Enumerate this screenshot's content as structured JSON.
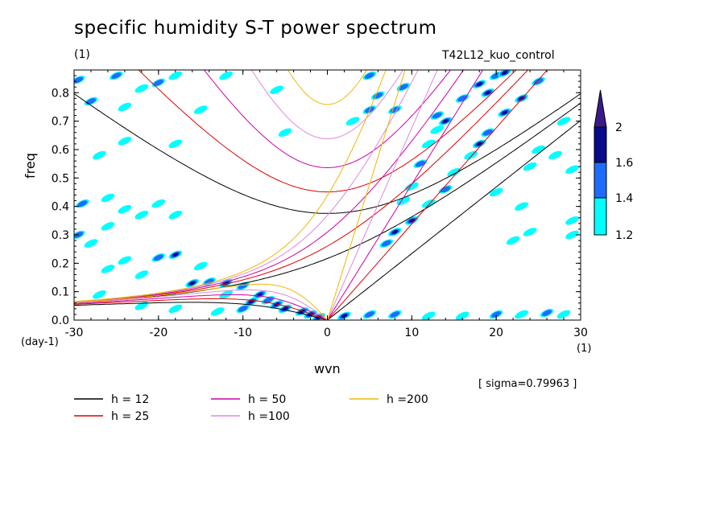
{
  "header": {
    "title": "specific humidity S-T power spectrum",
    "unit_left": "(1)",
    "run_name": "T42L12_kuo_control",
    "sigma": "[ sigma=0.79963 ]"
  },
  "chart_data": {
    "type": "contour",
    "xlabel": "wvn",
    "ylabel": "freq",
    "x_unit": "(1)",
    "y_unit": "(day-1)",
    "xlim": [
      -30,
      30
    ],
    "ylim": [
      0.0,
      0.88
    ],
    "xticks": [
      -30,
      -20,
      -10,
      0,
      10,
      20,
      30
    ],
    "xtick_labels": [
      "-30",
      "-20",
      "-10",
      "0",
      "10",
      "20",
      "30"
    ],
    "yticks": [
      0.0,
      0.1,
      0.2,
      0.3,
      0.4,
      0.5,
      0.6,
      0.7,
      0.8
    ],
    "ytick_labels": [
      "0.0",
      "0.1",
      "0.2",
      "0.3",
      "0.4",
      "0.5",
      "0.6",
      "0.7",
      "0.8"
    ],
    "colorbar": {
      "levels": [
        1.2,
        1.4,
        1.6,
        2
      ],
      "labels": [
        "1.2",
        "1.4",
        "1.6",
        "2"
      ],
      "colors": [
        "#00ffff",
        "#1e6cff",
        "#0a0a8c",
        "#3a1a8a"
      ]
    },
    "dispersion_curves": [
      {
        "name": "h = 12",
        "h": 12,
        "color": "#000000"
      },
      {
        "name": "h = 25",
        "h": 25,
        "color": "#dd0000"
      },
      {
        "name": "h = 50",
        "h": 50,
        "color": "#cc00aa"
      },
      {
        "name": "h =100",
        "h": 100,
        "color": "#dd88dd"
      },
      {
        "name": "h =200",
        "h": 200,
        "color": "#f0b800"
      }
    ],
    "spectral_peaks": [
      [
        -29.5,
        0.845,
        1.5
      ],
      [
        -28,
        0.77,
        1.4
      ],
      [
        -25,
        0.86,
        1.4
      ],
      [
        -24,
        0.75,
        1.3
      ],
      [
        -22,
        0.815,
        1.3
      ],
      [
        -20,
        0.835,
        1.5
      ],
      [
        -18,
        0.86,
        1.3
      ],
      [
        -15,
        0.74,
        1.2
      ],
      [
        -12,
        0.86,
        1.3
      ],
      [
        -6,
        0.81,
        1.3
      ],
      [
        -5,
        0.66,
        1.2
      ],
      [
        -18,
        0.62,
        1.3
      ],
      [
        -24,
        0.63,
        1.3
      ],
      [
        -27,
        0.58,
        1.2
      ],
      [
        -29,
        0.41,
        1.5
      ],
      [
        -26,
        0.43,
        1.3
      ],
      [
        -29.5,
        0.3,
        1.4
      ],
      [
        -28,
        0.27,
        1.3
      ],
      [
        -24,
        0.39,
        1.3
      ],
      [
        -22,
        0.37,
        1.3
      ],
      [
        -20,
        0.41,
        1.2
      ],
      [
        -18,
        0.37,
        1.2
      ],
      [
        -26,
        0.33,
        1.2
      ],
      [
        -26,
        0.18,
        1.3
      ],
      [
        -24,
        0.21,
        1.3
      ],
      [
        -20,
        0.22,
        1.4
      ],
      [
        -18,
        0.23,
        1.6
      ],
      [
        -22,
        0.16,
        1.3
      ],
      [
        -15,
        0.19,
        1.3
      ],
      [
        -16,
        0.13,
        1.6
      ],
      [
        -14,
        0.135,
        1.4
      ],
      [
        -12,
        0.13,
        1.6
      ],
      [
        -10,
        0.12,
        1.5
      ],
      [
        -8,
        0.09,
        1.6
      ],
      [
        -7,
        0.07,
        1.5
      ],
      [
        -12,
        0.09,
        1.3
      ],
      [
        -9,
        0.065,
        1.9
      ],
      [
        -6,
        0.055,
        1.9
      ],
      [
        -5,
        0.04,
        1.8
      ],
      [
        -3,
        0.03,
        1.7
      ],
      [
        -2,
        0.02,
        1.6
      ],
      [
        -10,
        0.04,
        1.4
      ],
      [
        -13,
        0.03,
        1.3
      ],
      [
        -18,
        0.04,
        1.2
      ],
      [
        -22,
        0.05,
        1.2
      ],
      [
        -27,
        0.09,
        1.2
      ],
      [
        -1,
        0.01,
        1.6
      ],
      [
        2,
        0.015,
        1.6
      ],
      [
        5,
        0.02,
        1.5
      ],
      [
        8,
        0.02,
        1.4
      ],
      [
        12,
        0.015,
        1.3
      ],
      [
        16,
        0.015,
        1.3
      ],
      [
        20,
        0.02,
        1.4
      ],
      [
        23,
        0.02,
        1.3
      ],
      [
        26,
        0.025,
        1.5
      ],
      [
        28,
        0.02,
        1.3
      ],
      [
        5,
        0.86,
        1.5
      ],
      [
        9,
        0.82,
        1.4
      ],
      [
        6,
        0.79,
        1.4
      ],
      [
        5,
        0.74,
        1.4
      ],
      [
        3,
        0.7,
        1.3
      ],
      [
        8,
        0.74,
        1.5
      ],
      [
        13,
        0.67,
        1.3
      ],
      [
        13,
        0.72,
        1.5
      ],
      [
        16,
        0.78,
        1.5
      ],
      [
        18,
        0.83,
        1.6
      ],
      [
        20,
        0.86,
        1.5
      ],
      [
        19,
        0.8,
        1.9
      ],
      [
        21,
        0.87,
        1.6
      ],
      [
        14,
        0.7,
        1.7
      ],
      [
        12,
        0.62,
        1.3
      ],
      [
        11,
        0.55,
        1.4
      ],
      [
        10,
        0.47,
        1.3
      ],
      [
        9,
        0.42,
        1.3
      ],
      [
        23,
        0.78,
        1.8
      ],
      [
        21,
        0.73,
        1.6
      ],
      [
        19,
        0.66,
        1.5
      ],
      [
        18,
        0.62,
        1.6
      ],
      [
        17,
        0.58,
        1.3
      ],
      [
        15,
        0.52,
        1.3
      ],
      [
        14,
        0.46,
        1.5
      ],
      [
        12,
        0.41,
        1.3
      ],
      [
        10,
        0.35,
        1.9
      ],
      [
        8,
        0.31,
        1.6
      ],
      [
        7,
        0.27,
        1.4
      ],
      [
        25,
        0.84,
        1.4
      ],
      [
        28,
        0.7,
        1.3
      ],
      [
        27,
        0.58,
        1.2
      ],
      [
        24,
        0.54,
        1.3
      ],
      [
        29,
        0.53,
        1.3
      ],
      [
        29,
        0.35,
        1.2
      ],
      [
        29,
        0.3,
        1.2
      ],
      [
        24,
        0.31,
        1.3
      ],
      [
        22,
        0.28,
        1.2
      ],
      [
        20,
        0.45,
        1.2
      ],
      [
        23,
        0.4,
        1.2
      ],
      [
        25,
        0.6,
        1.2
      ]
    ]
  }
}
